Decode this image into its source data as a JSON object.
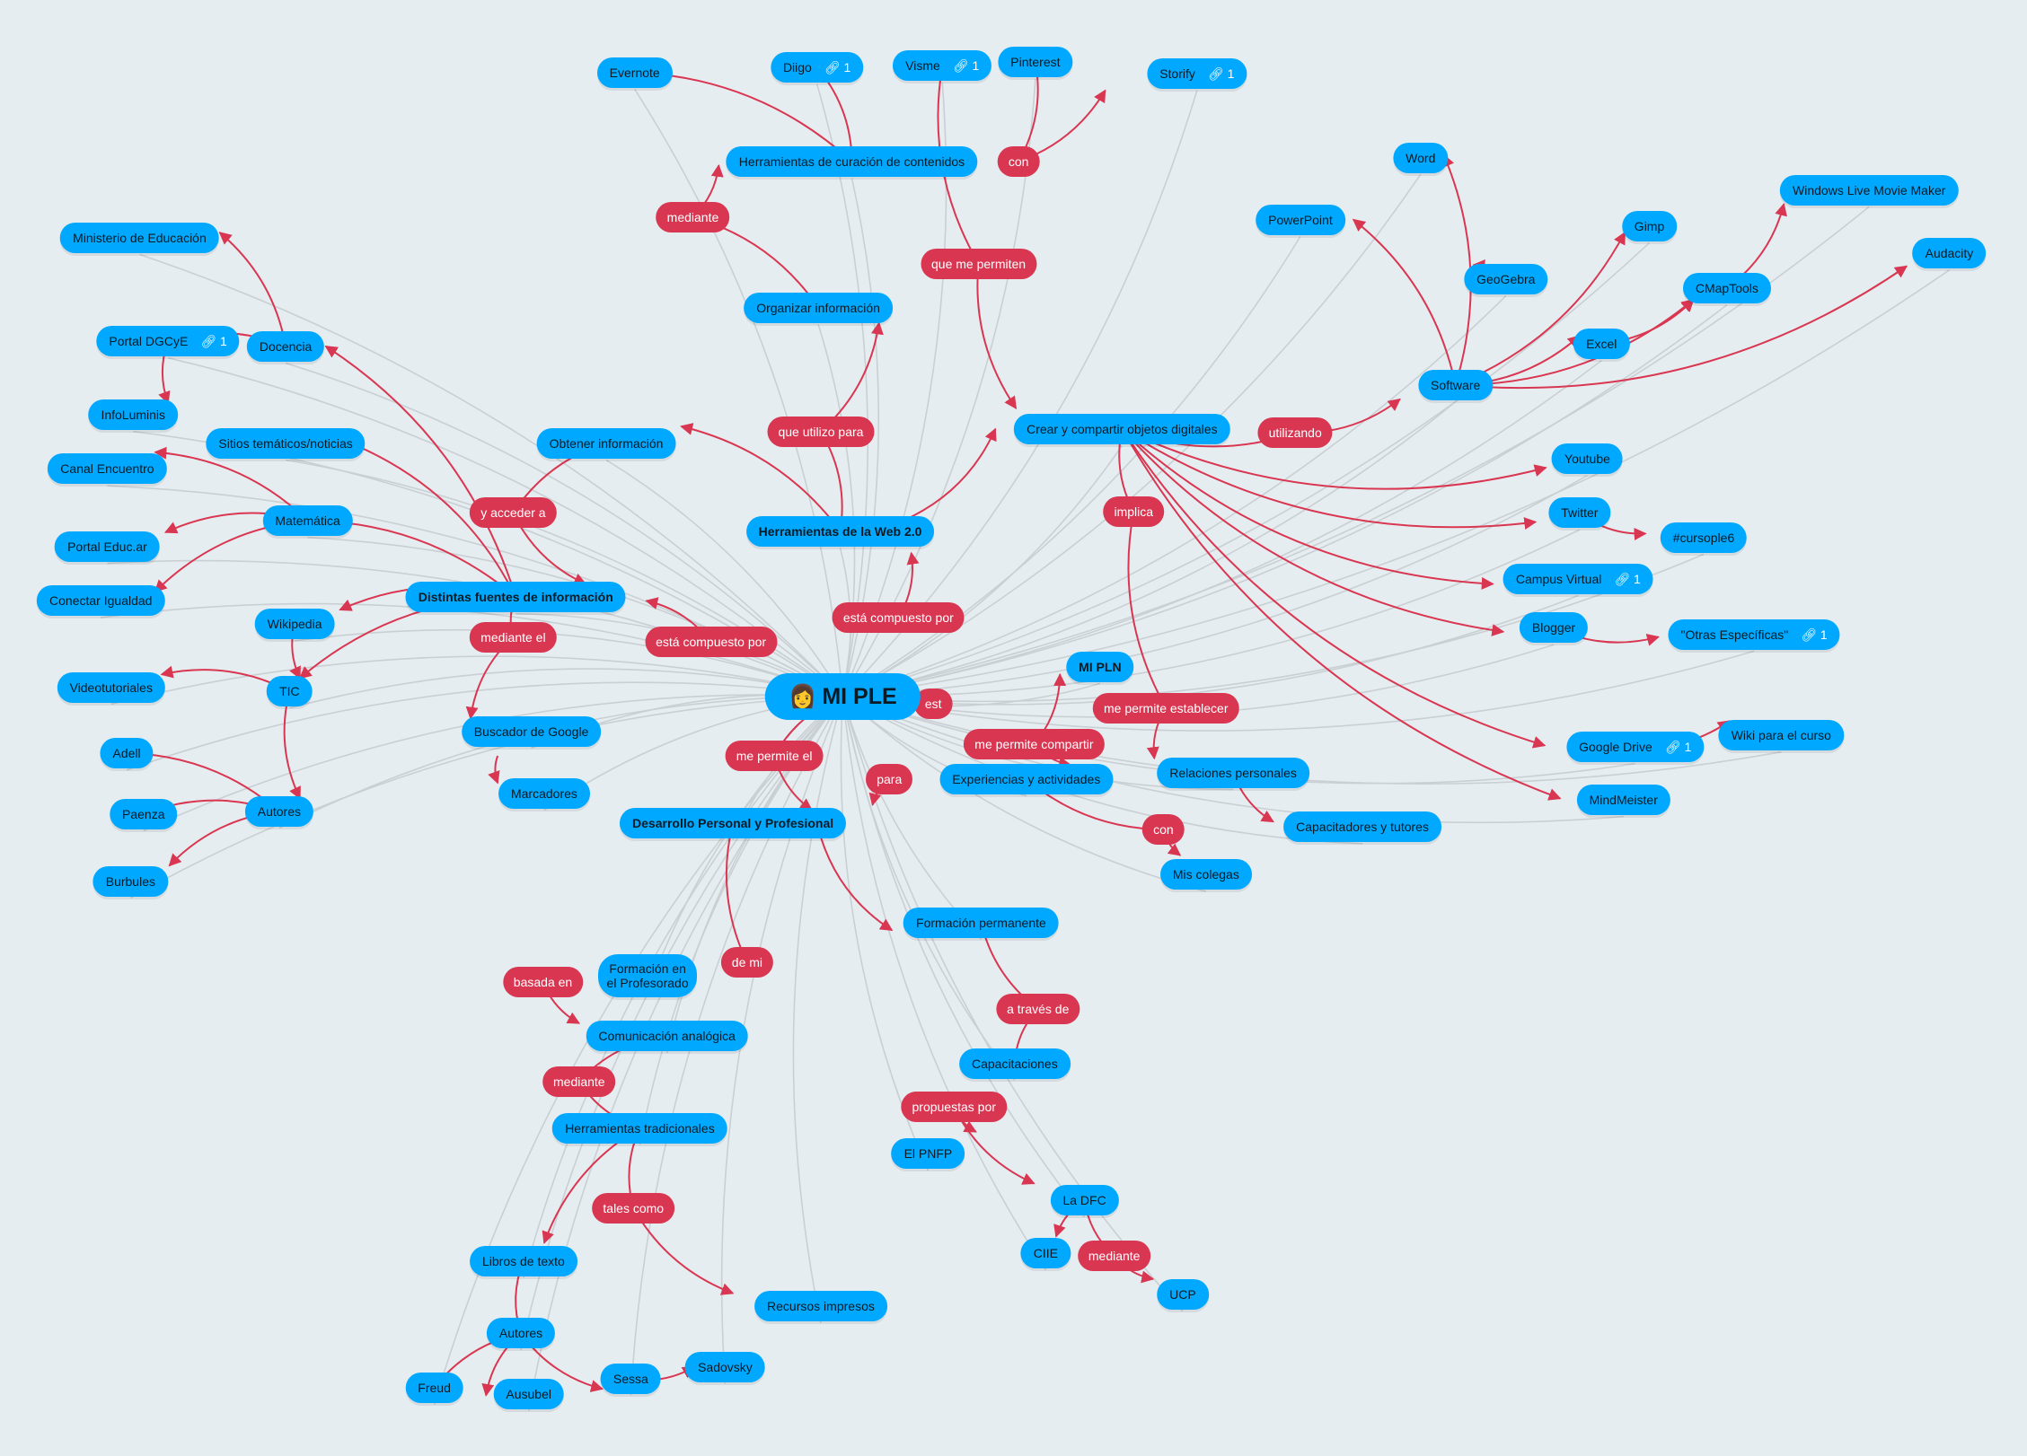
{
  "colors": {
    "background": "#e6edf1",
    "topic": "#00a9ff",
    "relation": "#d93651",
    "connector": "#c9cfd3"
  },
  "central": {
    "label": "MI PLE",
    "emoji": "👩"
  },
  "topics": [
    {
      "label": "Evernote"
    },
    {
      "label": "Diigo",
      "links": "1"
    },
    {
      "label": "Visme",
      "links": "1"
    },
    {
      "label": "Pinterest"
    },
    {
      "label": "Storify",
      "links": "1"
    },
    {
      "label": "Herramientas de curación de contenidos"
    },
    {
      "label": "Organizar información"
    },
    {
      "label": "Ministerio de Educación"
    },
    {
      "label": "Portal DGCyE",
      "links": "1"
    },
    {
      "label": "Docencia"
    },
    {
      "label": "InfoLuminis"
    },
    {
      "label": "Sitios temáticos/noticias"
    },
    {
      "label": "Obtener información"
    },
    {
      "label": "Canal Encuentro"
    },
    {
      "label": "Matemática"
    },
    {
      "label": "Portal Educ.ar"
    },
    {
      "label": "Conectar Igualdad"
    },
    {
      "label": "Distintas fuentes de información",
      "bold": true
    },
    {
      "label": "Wikipedia"
    },
    {
      "label": "Videotutoriales"
    },
    {
      "label": "TIC"
    },
    {
      "label": "Adell"
    },
    {
      "label": "Paenza"
    },
    {
      "label": "Autores"
    },
    {
      "label": "Burbules"
    },
    {
      "label": "Buscador de Google"
    },
    {
      "label": "Marcadores"
    },
    {
      "label": "Herramientas de la Web 2.0",
      "bold": true
    },
    {
      "label": "Crear y compartir objetos digitales"
    },
    {
      "label": "Word"
    },
    {
      "label": "PowerPoint"
    },
    {
      "label": "GeoGebra"
    },
    {
      "label": "Gimp"
    },
    {
      "label": "Windows Live Movie Maker"
    },
    {
      "label": "Audacity"
    },
    {
      "label": "CMapTools"
    },
    {
      "label": "Excel"
    },
    {
      "label": "Software"
    },
    {
      "label": "Youtube"
    },
    {
      "label": "Twitter"
    },
    {
      "label": "#cursople6"
    },
    {
      "label": "Campus Virtual",
      "links": "1"
    },
    {
      "label": "Blogger"
    },
    {
      "label": "\"Otras Específicas\"",
      "links": "1"
    },
    {
      "label": "MI PLN",
      "bold": true
    },
    {
      "label": "Relaciones personales"
    },
    {
      "label": "Experiencias y actividades"
    },
    {
      "label": "Capacitadores y tutores"
    },
    {
      "label": "Mis colegas"
    },
    {
      "label": "Google Drive",
      "links": "1"
    },
    {
      "label": "Wiki para el curso"
    },
    {
      "label": "MindMeister"
    },
    {
      "label": "Desarrollo Personal y Profesional",
      "bold": true
    },
    {
      "label": "Formación permanente"
    },
    {
      "label": "Capacitaciones"
    },
    {
      "label": "El PNFP"
    },
    {
      "label": "La DFC"
    },
    {
      "label": "CIIE"
    },
    {
      "label": "UCP"
    },
    {
      "label": "Formación en el Profesorado"
    },
    {
      "label": "Comunicación analógica"
    },
    {
      "label": "Herramientas tradicionales"
    },
    {
      "label": "Libros de texto"
    },
    {
      "label": "Autores"
    },
    {
      "label": "Freud"
    },
    {
      "label": "Ausubel"
    },
    {
      "label": "Sessa"
    },
    {
      "label": "Sadovsky"
    },
    {
      "label": "Recursos impresos"
    }
  ],
  "relations": [
    {
      "label": "con"
    },
    {
      "label": "mediante"
    },
    {
      "label": "que me permiten"
    },
    {
      "label": "que utilizo para"
    },
    {
      "label": "y acceder a"
    },
    {
      "label": "utilizando"
    },
    {
      "label": "implica"
    },
    {
      "label": "mediante el"
    },
    {
      "label": "está compuesto por"
    },
    {
      "label": "está compuesto por"
    },
    {
      "label": "est"
    },
    {
      "label": "me permite compartir"
    },
    {
      "label": "me permite establecer"
    },
    {
      "label": "me permite el"
    },
    {
      "label": "para"
    },
    {
      "label": "con"
    },
    {
      "label": "de mi"
    },
    {
      "label": "basada en"
    },
    {
      "label": "mediante"
    },
    {
      "label": "tales  como"
    },
    {
      "label": "a través de"
    },
    {
      "label": "propuestas por"
    },
    {
      "label": "mediante"
    }
  ]
}
